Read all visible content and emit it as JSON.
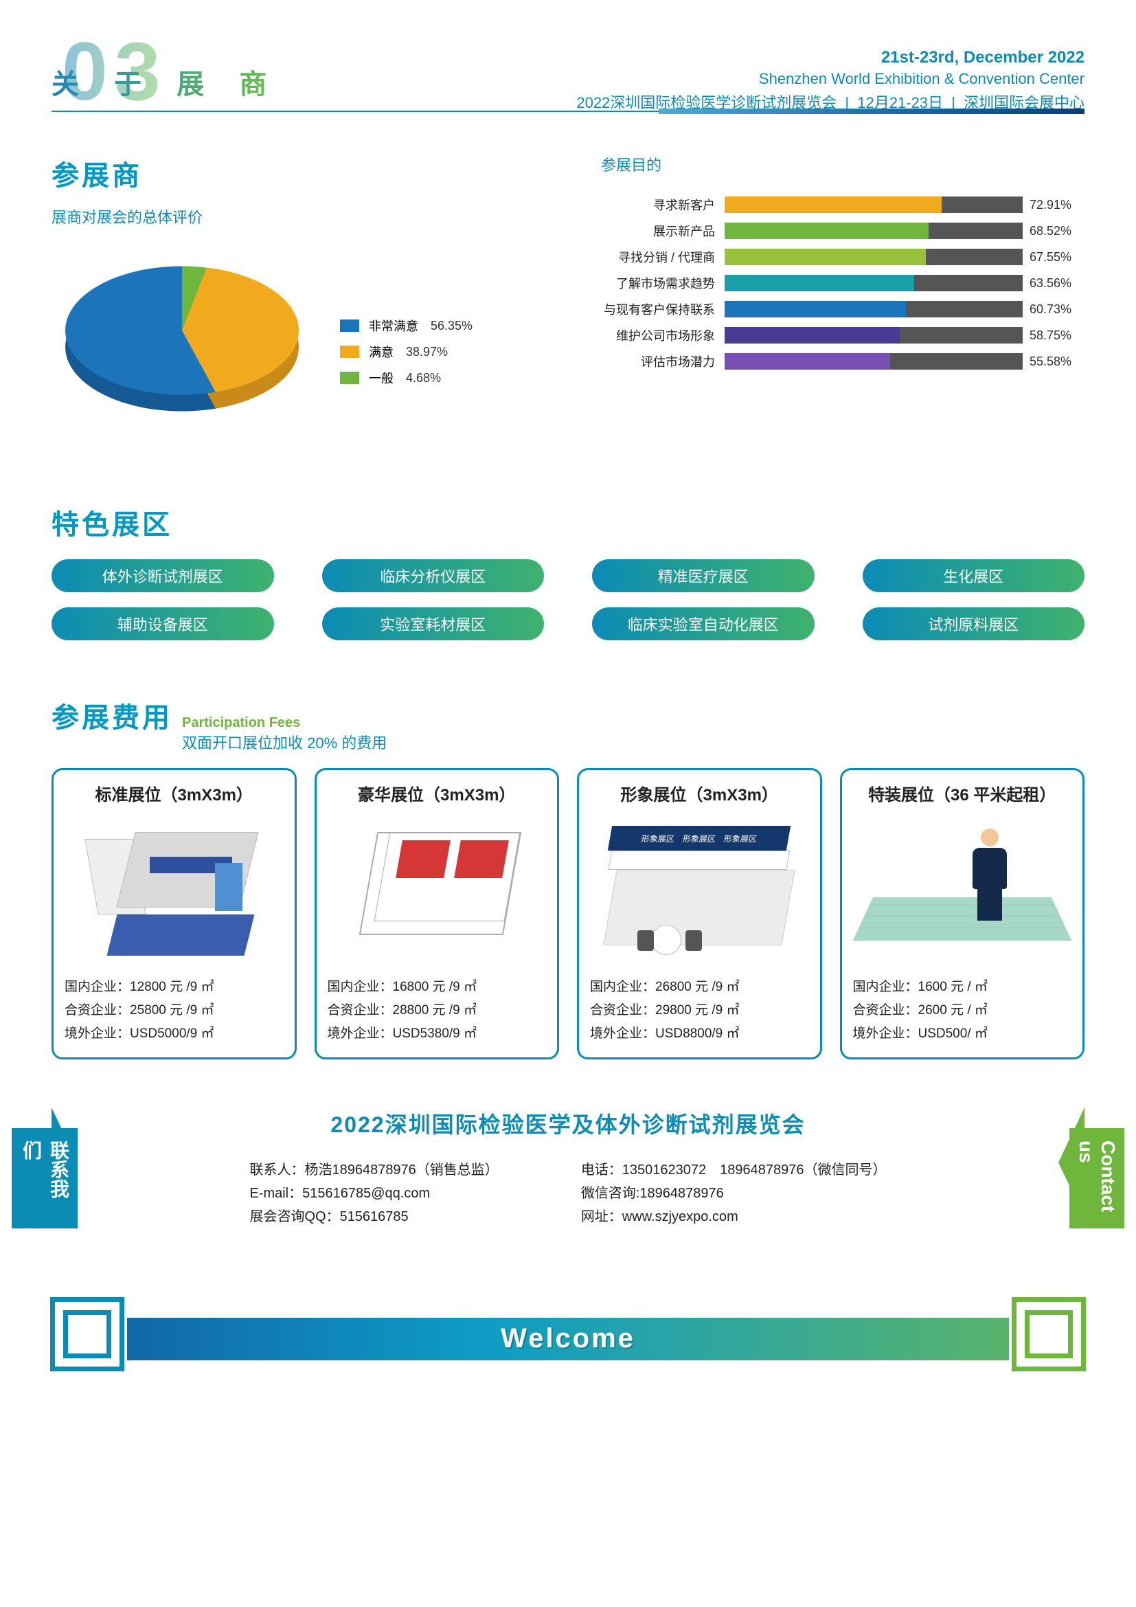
{
  "header": {
    "section_number": "03",
    "section_title": "关 于 展 商",
    "date_en": "21st-23rd, December 2022",
    "venue_en": "Shenzhen World Exhibition & Convention Center",
    "sub_cn": "2022深圳国际检验医学诊断试剂展览会",
    "sub_date": "12月21-23日",
    "sub_venue": "深圳国际会展中心"
  },
  "exhibitors": {
    "title": "参展商",
    "subtitle": "展商对展会的总体评价",
    "pie": {
      "items": [
        {
          "label": "非常满意",
          "value": 56.35,
          "pct": "56.35%",
          "color": "#1c75bb"
        },
        {
          "label": "满意",
          "value": 38.97,
          "pct": "38.97%",
          "color": "#f1a91e"
        },
        {
          "label": "一般",
          "value": 4.68,
          "pct": "4.68%",
          "color": "#6fb63c"
        }
      ]
    }
  },
  "purposes": {
    "title": "参展目的",
    "bars": [
      {
        "label": "寻求新客户",
        "pct": "72.91%",
        "value": 72.91,
        "color": "#f1a91e"
      },
      {
        "label": "展示新产品",
        "pct": "68.52%",
        "value": 68.52,
        "color": "#6fb63c"
      },
      {
        "label": "寻找分销 / 代理商",
        "pct": "67.55%",
        "value": 67.55,
        "color": "#99c23c"
      },
      {
        "label": "了解市场需求趋势",
        "pct": "63.56%",
        "value": 63.56,
        "color": "#18a0a8"
      },
      {
        "label": "与现有客户保持联系",
        "pct": "60.73%",
        "value": 60.73,
        "color": "#1c75bb"
      },
      {
        "label": "维护公司市场形象",
        "pct": "58.75%",
        "value": 58.75,
        "color": "#4a3a93"
      },
      {
        "label": "评估市场潜力",
        "pct": "55.58%",
        "value": 55.58,
        "color": "#7a4fb3"
      }
    ],
    "track_color": "#555555"
  },
  "zones": {
    "title": "特色展区",
    "items": [
      "体外诊断试剂展区",
      "临床分析仪展区",
      "精准医疗展区",
      "生化展区",
      "辅助设备展区",
      "实验室耗材展区",
      "临床实验室自动化展区",
      "试剂原料展区"
    ]
  },
  "fees": {
    "title": "参展费用",
    "title_en": "Participation Fees",
    "note": "双面开口展位加收 20% 的费用",
    "booths": [
      {
        "name": "标准展位（3mX3m）",
        "lines": [
          "国内企业：12800 元 /9 ㎡",
          "合资企业：25800 元 /9 ㎡",
          "境外企业：USD5000/9 ㎡"
        ]
      },
      {
        "name": "豪华展位（3mX3m）",
        "lines": [
          "国内企业：16800 元 /9 ㎡",
          "合资企业：28800 元 /9 ㎡",
          "境外企业：USD5380/9 ㎡"
        ]
      },
      {
        "name": "形象展位（3mX3m）",
        "lines": [
          "国内企业：26800 元 /9 ㎡",
          "合资企业：29800 元 /9 ㎡",
          "境外企业：USD8800/9 ㎡"
        ]
      },
      {
        "name": "特装展位（36 平米起租）",
        "lines": [
          "国内企业：1600 元 / ㎡",
          "合资企业：2600 元 / ㎡",
          "境外企业：USD500/ ㎡"
        ]
      }
    ]
  },
  "contact": {
    "left_label": "联系我们",
    "right_label": "Contact us",
    "expo_title": "2022深圳国际检验医学及体外诊断试剂展览会",
    "col1": [
      "联系人：杨浩18964878976（销售总监）",
      "E-mail：515616785@qq.com",
      "展会咨询QQ：515616785"
    ],
    "col2": [
      "电话：13501623072　18964878976（微信同号）",
      "微信咨询:18964878976",
      "网址：www.szjyexpo.com"
    ]
  },
  "welcome": "Welcome",
  "colors": {
    "primary": "#0b8cb5",
    "green": "#6fb63c",
    "grad_from": "#1168a7",
    "grad_to": "#59b36b"
  }
}
